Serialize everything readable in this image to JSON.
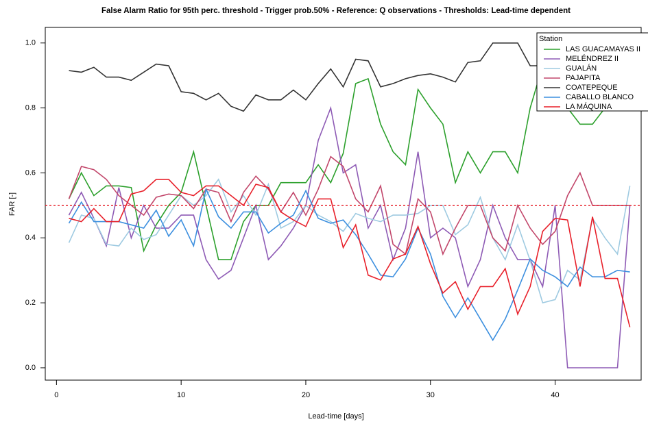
{
  "chart_data": {
    "type": "line",
    "title": "False Alarm Ratio for 95th perc. threshold - Trigger prob.50% - Reference: Q observations - Thresholds: Lead-time dependent",
    "x_label": "Lead-time [days]",
    "y_label": "FAR [-]",
    "x": [
      1,
      2,
      3,
      4,
      5,
      6,
      7,
      8,
      9,
      10,
      11,
      12,
      13,
      14,
      15,
      16,
      17,
      18,
      19,
      20,
      21,
      22,
      23,
      24,
      25,
      26,
      27,
      28,
      29,
      30,
      31,
      32,
      33,
      34,
      35,
      36,
      37,
      38,
      39,
      40,
      41,
      42,
      43,
      44,
      45,
      46
    ],
    "xlim": [
      -0.9,
      46.9
    ],
    "ylim": [
      -0.038,
      1.048
    ],
    "xticks": [
      0,
      10,
      20,
      30,
      40
    ],
    "yticks": [
      {
        "value": 0,
        "label": "0.0"
      },
      0.2,
      0.4,
      0.6,
      0.8,
      {
        "value": 1,
        "label": "1.0"
      }
    ],
    "hline": 0.5,
    "hline_color": "#e8202a",
    "legend_title": "Station",
    "legend": "topright",
    "series": [
      {
        "name": "LAS GUACAMAYAS II",
        "color": "#2ca02c",
        "values": [
          0.52,
          0.6,
          0.53,
          0.56,
          0.56,
          0.555,
          0.36,
          0.44,
          0.5,
          0.54,
          0.665,
          0.5,
          0.333,
          0.333,
          0.45,
          0.5,
          0.5,
          0.57,
          0.57,
          0.57,
          0.625,
          0.57,
          0.66,
          0.875,
          0.89,
          0.75,
          0.665,
          0.625,
          0.857,
          0.8,
          0.75,
          0.57,
          0.665,
          0.6,
          0.665,
          0.665,
          0.6,
          0.8,
          0.93,
          0.8,
          0.8,
          0.75,
          0.75,
          0.8,
          0.8,
          0.8
        ]
      },
      {
        "name": "MELÉNDREZ II",
        "color": "#8e5bb5",
        "values": [
          0.47,
          0.54,
          0.46,
          0.375,
          0.555,
          0.4,
          0.5,
          0.43,
          0.43,
          0.47,
          0.47,
          0.333,
          0.273,
          0.3,
          0.4,
          0.5,
          0.333,
          0.375,
          0.43,
          0.5,
          0.7,
          0.8,
          0.6,
          0.625,
          0.43,
          0.5,
          0.333,
          0.43,
          0.665,
          0.4,
          0.43,
          0.4,
          0.25,
          0.333,
          0.5,
          0.4,
          0.333,
          0.333,
          0.25,
          0.5,
          0,
          0,
          0,
          0,
          0,
          0.5
        ]
      },
      {
        "name": "GUALÁN",
        "color": "#9ecae1",
        "values": [
          0.385,
          0.47,
          0.46,
          0.38,
          0.375,
          0.43,
          0.395,
          0.41,
          0.47,
          0.53,
          0.5,
          0.53,
          0.58,
          0.48,
          0.53,
          0.47,
          0.565,
          0.43,
          0.45,
          0.5,
          0.47,
          0.45,
          0.42,
          0.475,
          0.46,
          0.45,
          0.47,
          0.47,
          0.475,
          0.5,
          0.5,
          0.41,
          0.44,
          0.525,
          0.4,
          0.333,
          0.44,
          0.33,
          0.2,
          0.21,
          0.3,
          0.27,
          0.46,
          0.4,
          0.35,
          0.56
        ]
      },
      {
        "name": "PAJAPITA",
        "color": "#c2476b",
        "values": [
          0.52,
          0.62,
          0.61,
          0.58,
          0.53,
          0.5,
          0.47,
          0.525,
          0.535,
          0.53,
          0.49,
          0.55,
          0.54,
          0.45,
          0.54,
          0.59,
          0.55,
          0.48,
          0.54,
          0.47,
          0.55,
          0.65,
          0.62,
          0.52,
          0.48,
          0.56,
          0.38,
          0.35,
          0.52,
          0.48,
          0.35,
          0.43,
          0.5,
          0.5,
          0.4,
          0.36,
          0.5,
          0.43,
          0.38,
          0.42,
          0.53,
          0.6,
          0.5,
          0.5,
          0.5,
          0.5
        ]
      },
      {
        "name": "COATEPEQUE",
        "color": "#333333",
        "values": [
          0.915,
          0.91,
          0.925,
          0.895,
          0.895,
          0.885,
          0.91,
          0.935,
          0.93,
          0.85,
          0.845,
          0.825,
          0.845,
          0.805,
          0.79,
          0.84,
          0.825,
          0.825,
          0.855,
          0.825,
          0.875,
          0.92,
          0.865,
          0.95,
          0.945,
          0.865,
          0.875,
          0.89,
          0.9,
          0.905,
          0.895,
          0.88,
          0.94,
          0.945,
          1,
          1,
          1,
          0.93,
          0.93,
          0.93,
          0.93,
          0.93,
          0.93,
          0.93,
          0.93,
          0.93
        ]
      },
      {
        "name": "CABALLO BLANCO",
        "color": "#3c8fdf",
        "values": [
          0.445,
          0.51,
          0.45,
          0.45,
          0.45,
          0.44,
          0.43,
          0.485,
          0.405,
          0.455,
          0.375,
          0.55,
          0.465,
          0.43,
          0.48,
          0.48,
          0.415,
          0.445,
          0.47,
          0.545,
          0.46,
          0.445,
          0.455,
          0.41,
          0.35,
          0.285,
          0.28,
          0.335,
          0.43,
          0.35,
          0.22,
          0.155,
          0.215,
          0.15,
          0.085,
          0.15,
          0.24,
          0.335,
          0.3,
          0.28,
          0.25,
          0.31,
          0.28,
          0.28,
          0.3,
          0.295
        ]
      },
      {
        "name": "LA MÁQUINA",
        "color": "#e8202a",
        "values": [
          0.46,
          0.45,
          0.49,
          0.45,
          0.45,
          0.535,
          0.545,
          0.58,
          0.58,
          0.54,
          0.53,
          0.56,
          0.56,
          0.53,
          0.5,
          0.565,
          0.555,
          0.48,
          0.455,
          0.435,
          0.52,
          0.52,
          0.37,
          0.44,
          0.285,
          0.27,
          0.335,
          0.35,
          0.435,
          0.32,
          0.23,
          0.265,
          0.18,
          0.25,
          0.25,
          0.305,
          0.165,
          0.25,
          0.42,
          0.46,
          0.455,
          0.25,
          0.465,
          0.275,
          0.275,
          0.125
        ]
      }
    ]
  }
}
